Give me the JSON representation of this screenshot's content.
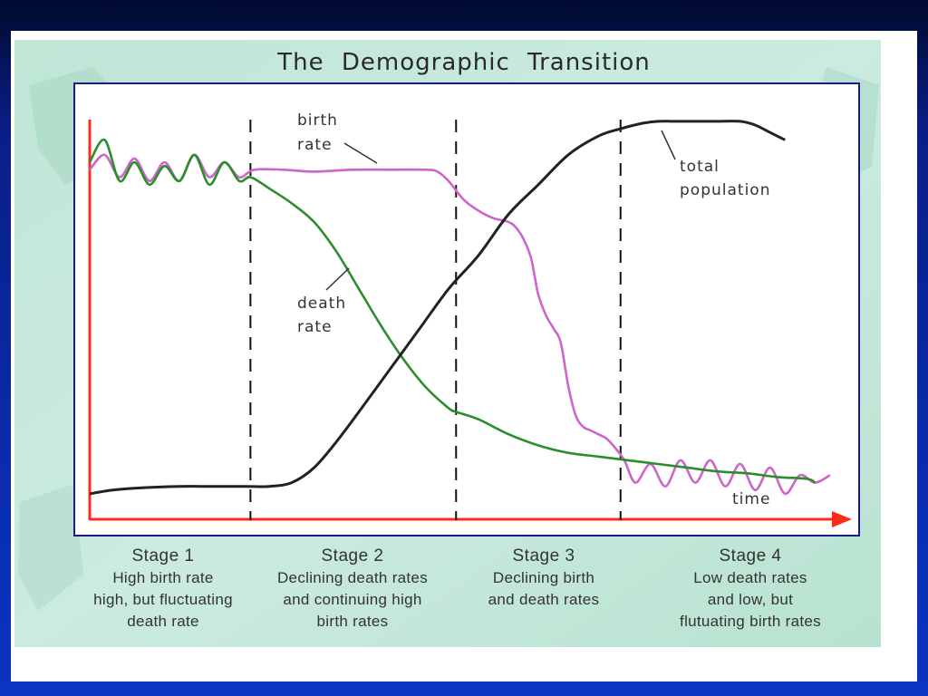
{
  "chart_data": {
    "title": "The Demographic Transition",
    "type": "line",
    "xlabel": "time",
    "ylabel": "",
    "xlim": [
      0,
      100
    ],
    "ylim": [
      0,
      100
    ],
    "grid": false,
    "stage_boundaries": [
      21.5,
      49,
      71
    ],
    "series": [
      {
        "name": "birth rate",
        "color": "#cc66cc",
        "x": [
          0,
          2,
          4,
          6,
          8,
          10,
          12,
          14,
          16,
          18,
          20,
          22,
          26,
          30,
          35,
          40,
          45,
          46.5,
          48,
          50,
          52,
          54,
          56,
          57,
          58,
          59,
          59.5,
          60,
          61,
          62,
          63,
          64,
          65,
          66,
          67,
          68,
          69,
          70,
          71.5,
          73,
          75,
          77,
          79,
          81,
          83,
          85,
          87,
          89,
          91,
          93,
          95,
          97,
          99
        ],
        "values": [
          88,
          92,
          86,
          91,
          85,
          90,
          85,
          92,
          86,
          90,
          86,
          88,
          88,
          87.5,
          88,
          88,
          88,
          87.5,
          85,
          80,
          77,
          75,
          74,
          72.5,
          69.5,
          64.5,
          59.5,
          54.5,
          49,
          45.5,
          41.5,
          30,
          22,
          19,
          18,
          17,
          16,
          14,
          10,
          4,
          9,
          3,
          10,
          4,
          10,
          3,
          9,
          2,
          8,
          1,
          6,
          4,
          6
        ]
      },
      {
        "name": "death rate",
        "color": "#2a8f2a",
        "x": [
          0,
          2,
          4,
          6,
          8,
          10,
          12,
          14,
          16,
          18,
          20,
          21.5,
          24,
          27,
          30,
          33,
          36,
          39,
          42,
          45,
          48,
          49,
          52,
          56,
          60,
          64,
          68,
          72,
          76,
          80,
          84,
          88,
          92,
          96,
          97
        ],
        "values": [
          90,
          96,
          85,
          90,
          84,
          89,
          85,
          92,
          84,
          90,
          85,
          86,
          83,
          79,
          74,
          66,
          56,
          46,
          37,
          29.5,
          24,
          23,
          21,
          17,
          14,
          12,
          11,
          10,
          9,
          8,
          7,
          6.5,
          5.5,
          5,
          4
        ]
      },
      {
        "name": "total population",
        "color": "#222222",
        "x": [
          0,
          3,
          6,
          9,
          12,
          15,
          18,
          21,
          24,
          27,
          30,
          33,
          36,
          40,
          44,
          48,
          52,
          56,
          60,
          64,
          68,
          71,
          74,
          76,
          78,
          80,
          82,
          84,
          87,
          89,
          91,
          93
        ],
        "values": [
          1,
          2,
          2.5,
          2.8,
          3,
          3,
          3,
          3,
          3,
          4,
          8,
          15,
          23,
          34,
          45,
          56,
          65,
          76,
          84,
          92,
          97,
          99,
          100.5,
          101,
          101,
          101,
          101,
          101,
          101,
          100,
          98,
          96
        ]
      }
    ],
    "labels": {
      "birth_rate": [
        "birth",
        "rate"
      ],
      "death_rate": [
        "death",
        "rate"
      ],
      "total_population": [
        "total",
        "population"
      ]
    },
    "stages": [
      {
        "name": "Stage 1",
        "description": "High birth rate\nhigh, but fluctuating\ndeath rate"
      },
      {
        "name": "Stage 2",
        "description": "Declining death rates\nand continuing high\nbirth rates"
      },
      {
        "name": "Stage 3",
        "description": "Declining birth\nand death rates"
      },
      {
        "name": "Stage 4",
        "description": "Low death rates\nand low, but\nflutuating birth rates"
      }
    ]
  }
}
